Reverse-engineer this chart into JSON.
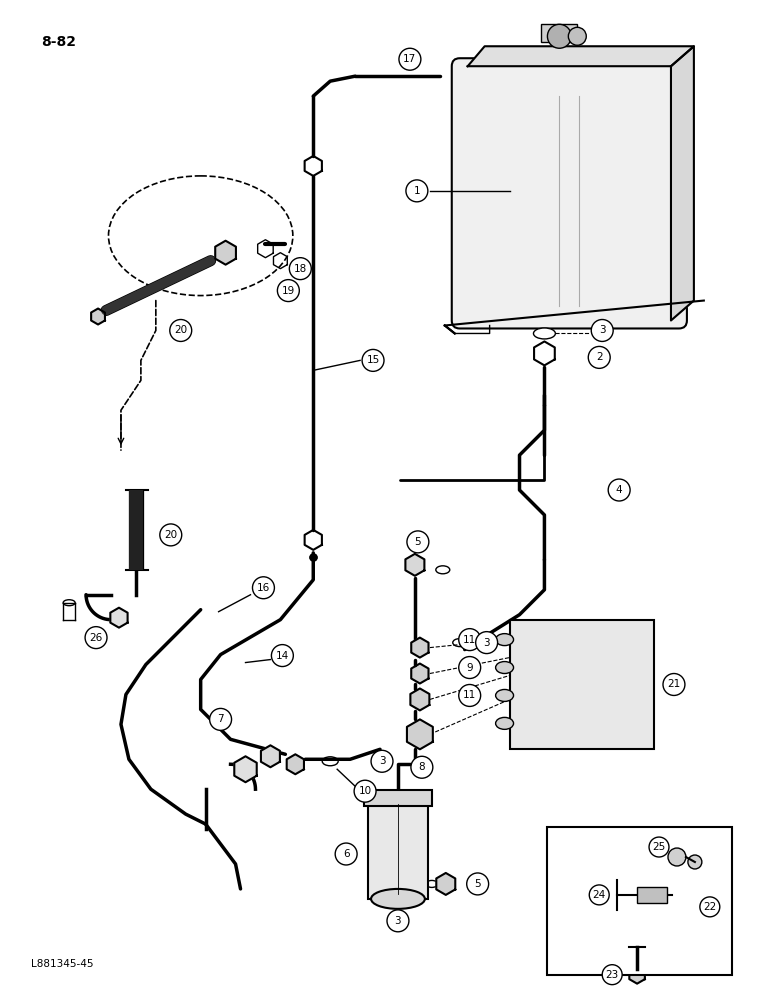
{
  "page_number": "8-82",
  "figure_id": "L881345-45",
  "bg": "#ffffff",
  "figsize": [
    7.72,
    10.0
  ],
  "dpi": 100
}
